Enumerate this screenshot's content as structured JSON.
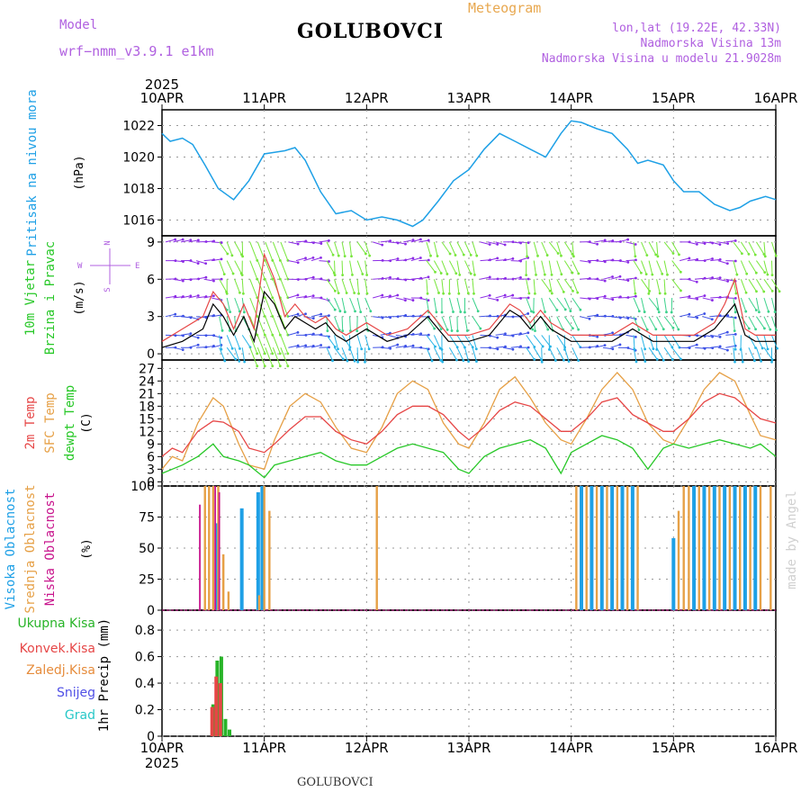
{
  "header": {
    "model_label": "Model",
    "model_name": "wrf−nmm_v3.9.1 e1km",
    "station": "GOLUBOVCI",
    "meteogram": "Meteogram",
    "lonlat": "lon,lat (19.22E, 42.33N)",
    "altitude": "Nadmorska Visina 13m",
    "model_altitude": "Nadmorska Visina u modelu 21.9028m",
    "year": "2025",
    "watermark": "made by Angel",
    "footer_station": "GOLUBOVCI"
  },
  "axis": {
    "x_ticks": [
      "10APR",
      "11APR",
      "12APR",
      "13APR",
      "14APR",
      "15APR",
      "16APR"
    ]
  },
  "panel_labels": {
    "pressure": [
      "Pritisak na nivou mora",
      "(hPa)"
    ],
    "wind": [
      "10m Vjetar",
      "Brzina i Pravac",
      "(m/s)"
    ],
    "wind_compass": [
      "N",
      "W",
      "E",
      "S"
    ],
    "temp": [
      "2m Temp",
      "SFC Temp",
      "dewpt Temp",
      "(C)"
    ],
    "cloud": [
      "Visoka Oblacnost",
      "Srednja Oblacnost",
      "Niska Oblacnost",
      "(%)"
    ],
    "precip_legend": [
      "Ukupna Kisa",
      "Konvek.Kisa",
      "Zaledj.Kisa",
      "Snijeg",
      "Grad"
    ],
    "precip_unit": "1hr Precip (mm)"
  },
  "colors": {
    "pressure": "#1ea0e6",
    "temp2m": "#e64646",
    "sfc": "#e6a046",
    "dew": "#28c828",
    "wind_speed": "#000000",
    "gust": "#e64646",
    "high_cloud": "#1ea0e6",
    "mid_cloud": "#e6a046",
    "low_cloud": "#c8148c",
    "total_rain": "#28b428",
    "conv_rain": "#e64646",
    "frz_rain": "#e68c3c",
    "snow": "#5050e6",
    "hail": "#28c8c8",
    "purple_label": "#b060e0"
  },
  "chart_data": [
    {
      "type": "line",
      "title": "",
      "ylabel": "Pritisak na nivou mora (hPa)",
      "ylim": [
        1015,
        1023
      ],
      "yticks": [
        1016,
        1018,
        1020,
        1022
      ],
      "x_days": [
        0,
        0.08,
        0.2,
        0.3,
        0.42,
        0.55,
        0.7,
        0.85,
        1.0,
        1.1,
        1.2,
        1.3,
        1.4,
        1.55,
        1.7,
        1.85,
        2.0,
        2.15,
        2.3,
        2.45,
        2.55,
        2.7,
        2.85,
        3.0,
        3.15,
        3.3,
        3.45,
        3.6,
        3.75,
        3.9,
        4.0,
        4.1,
        4.25,
        4.4,
        4.55,
        4.65,
        4.75,
        4.9,
        5.0,
        5.1,
        5.25,
        5.4,
        5.55,
        5.65,
        5.75,
        5.9,
        6.0
      ],
      "series": [
        {
          "values": [
            1021.5,
            1021.0,
            1021.2,
            1020.8,
            1019.5,
            1018.0,
            1017.3,
            1018.5,
            1020.2,
            1020.3,
            1020.4,
            1020.6,
            1019.8,
            1017.8,
            1016.4,
            1016.6,
            1016.0,
            1016.2,
            1016.0,
            1015.6,
            1016.0,
            1017.2,
            1018.5,
            1019.2,
            1020.5,
            1021.5,
            1021.0,
            1020.5,
            1020.0,
            1021.5,
            1022.3,
            1022.2,
            1021.8,
            1021.5,
            1020.5,
            1019.6,
            1019.8,
            1019.5,
            1018.5,
            1017.8,
            1017.8,
            1017.0,
            1016.6,
            1016.8,
            1017.2,
            1017.5,
            1017.3
          ]
        }
      ]
    },
    {
      "type": "line",
      "title": "",
      "ylabel": "10m Vjetar Brzina i Pravac (m/s)",
      "ylim": [
        -0.5,
        9.5
      ],
      "yticks": [
        0,
        3,
        6,
        9
      ],
      "x_days": [
        0,
        0.2,
        0.4,
        0.5,
        0.6,
        0.7,
        0.8,
        0.9,
        1.0,
        1.1,
        1.2,
        1.3,
        1.4,
        1.5,
        1.6,
        1.7,
        1.8,
        2.0,
        2.2,
        2.4,
        2.6,
        2.8,
        3.0,
        3.2,
        3.4,
        3.5,
        3.6,
        3.7,
        3.8,
        4.0,
        4.2,
        4.4,
        4.6,
        4.8,
        5.0,
        5.2,
        5.4,
        5.5,
        5.6,
        5.7,
        5.8,
        6.0
      ],
      "series": [
        {
          "values": [
            0.5,
            1,
            2,
            4,
            3,
            1.5,
            3,
            1,
            5,
            4,
            2,
            3,
            2.5,
            2,
            2.5,
            1.5,
            1,
            2,
            1,
            1.5,
            3,
            1,
            1,
            1.5,
            3.5,
            3,
            2,
            3,
            2,
            1,
            1,
            1,
            2,
            1,
            1,
            1,
            2,
            3,
            4,
            1.5,
            1,
            1
          ]
        },
        {
          "values": [
            1,
            2,
            3,
            5,
            4,
            2,
            4,
            2,
            8,
            6,
            3,
            4,
            3,
            2.5,
            3,
            2,
            1.5,
            2.5,
            1.5,
            2,
            3.5,
            1.5,
            1.5,
            2,
            4,
            3.5,
            2.5,
            3.5,
            2.5,
            1.5,
            1.5,
            1.5,
            2.5,
            1.5,
            1.5,
            1.5,
            2.5,
            4,
            6,
            2,
            1.5,
            1.5
          ]
        }
      ]
    },
    {
      "type": "line",
      "title": "",
      "ylabel": "Temp (C)",
      "ylim": [
        -1,
        29
      ],
      "yticks": [
        0,
        3,
        6,
        9,
        12,
        15,
        18,
        21,
        24,
        27
      ],
      "x_days": [
        0,
        0.1,
        0.2,
        0.35,
        0.5,
        0.6,
        0.75,
        0.85,
        1.0,
        1.1,
        1.25,
        1.4,
        1.55,
        1.7,
        1.85,
        2.0,
        2.15,
        2.3,
        2.45,
        2.6,
        2.75,
        2.9,
        3.0,
        3.15,
        3.3,
        3.45,
        3.6,
        3.75,
        3.9,
        4.0,
        4.15,
        4.3,
        4.45,
        4.6,
        4.75,
        4.9,
        5.0,
        5.15,
        5.3,
        5.45,
        5.6,
        5.75,
        5.85,
        6.0
      ],
      "series": [
        {
          "values": [
            6,
            8,
            7,
            12,
            14.5,
            14.2,
            12,
            8,
            7,
            9,
            12.5,
            15.5,
            15.5,
            12,
            10,
            9,
            12,
            16,
            18,
            18,
            16,
            12,
            10,
            13,
            17,
            19,
            18,
            15,
            12,
            12,
            15,
            19,
            20,
            16,
            14,
            12,
            12,
            15,
            19,
            21,
            20,
            17,
            15,
            14
          ]
        },
        {
          "values": [
            3,
            6,
            5,
            14,
            20,
            18,
            9,
            4,
            3,
            10,
            18,
            21,
            19,
            13,
            8,
            7,
            13,
            21,
            24,
            22,
            14,
            9,
            8,
            14,
            22,
            25,
            20,
            14,
            10,
            9,
            15,
            22,
            26,
            22,
            14,
            10,
            9,
            15,
            22,
            26,
            24,
            16,
            11,
            10
          ]
        },
        {
          "values": [
            2,
            3,
            4,
            6,
            9,
            6,
            5,
            4,
            1,
            4,
            5,
            6,
            7,
            5,
            4,
            4,
            6,
            8,
            9,
            8,
            7,
            3,
            2,
            6,
            8,
            9,
            10,
            8,
            2,
            7,
            9,
            11,
            10,
            8,
            3,
            8,
            9,
            8,
            9,
            10,
            9,
            8,
            9,
            6
          ]
        }
      ]
    },
    {
      "type": "bar",
      "title": "",
      "ylabel": "Oblacnost (%)",
      "ylim": [
        0,
        100
      ],
      "yticks": [
        0,
        25,
        50,
        75,
        100
      ],
      "series": [
        {
          "name": "Visoka Oblacnost",
          "x_days": [
            0.54,
            0.78,
            0.94,
            0.98,
            4.1,
            4.2,
            4.3,
            4.4,
            4.5,
            4.6,
            5.0,
            5.2,
            5.3,
            5.4,
            5.5,
            5.6,
            5.7,
            5.8
          ],
          "values": [
            70,
            82,
            95,
            100,
            100,
            100,
            100,
            100,
            100,
            100,
            58,
            100,
            100,
            100,
            100,
            100,
            100,
            100
          ]
        },
        {
          "name": "Srednja Oblacnost",
          "x_days": [
            0.42,
            0.46,
            0.5,
            0.55,
            0.6,
            0.65,
            0.95,
            1.0,
            1.05,
            2.1,
            4.05,
            4.15,
            4.25,
            4.35,
            4.45,
            4.55,
            4.65,
            5.05,
            5.1,
            5.15,
            5.25,
            5.35,
            5.45,
            5.55,
            5.65,
            5.75,
            5.85,
            5.95
          ],
          "values": [
            100,
            100,
            100,
            100,
            45,
            15,
            12,
            100,
            80,
            100,
            100,
            100,
            100,
            100,
            100,
            100,
            100,
            80,
            100,
            100,
            100,
            100,
            100,
            100,
            100,
            100,
            100,
            100
          ]
        },
        {
          "name": "Niska Oblacnost",
          "x_days": [
            0.37,
            0.52,
            0.56
          ],
          "values": [
            85,
            100,
            95
          ]
        }
      ]
    },
    {
      "type": "bar",
      "title": "",
      "ylabel": "1hr Precip (mm)",
      "ylim": [
        0,
        0.95
      ],
      "yticks": [
        0,
        0.2,
        0.4,
        0.6,
        0.8
      ],
      "series": [
        {
          "name": "Ukupna Kisa",
          "x_days": [
            0.5,
            0.54,
            0.58,
            0.62,
            0.66
          ],
          "values": [
            0.24,
            0.57,
            0.6,
            0.13,
            0.05
          ]
        },
        {
          "name": "Konvek.Kisa",
          "x_days": [
            0.49,
            0.53,
            0.57
          ],
          "values": [
            0.22,
            0.45,
            0.4
          ]
        }
      ]
    }
  ]
}
